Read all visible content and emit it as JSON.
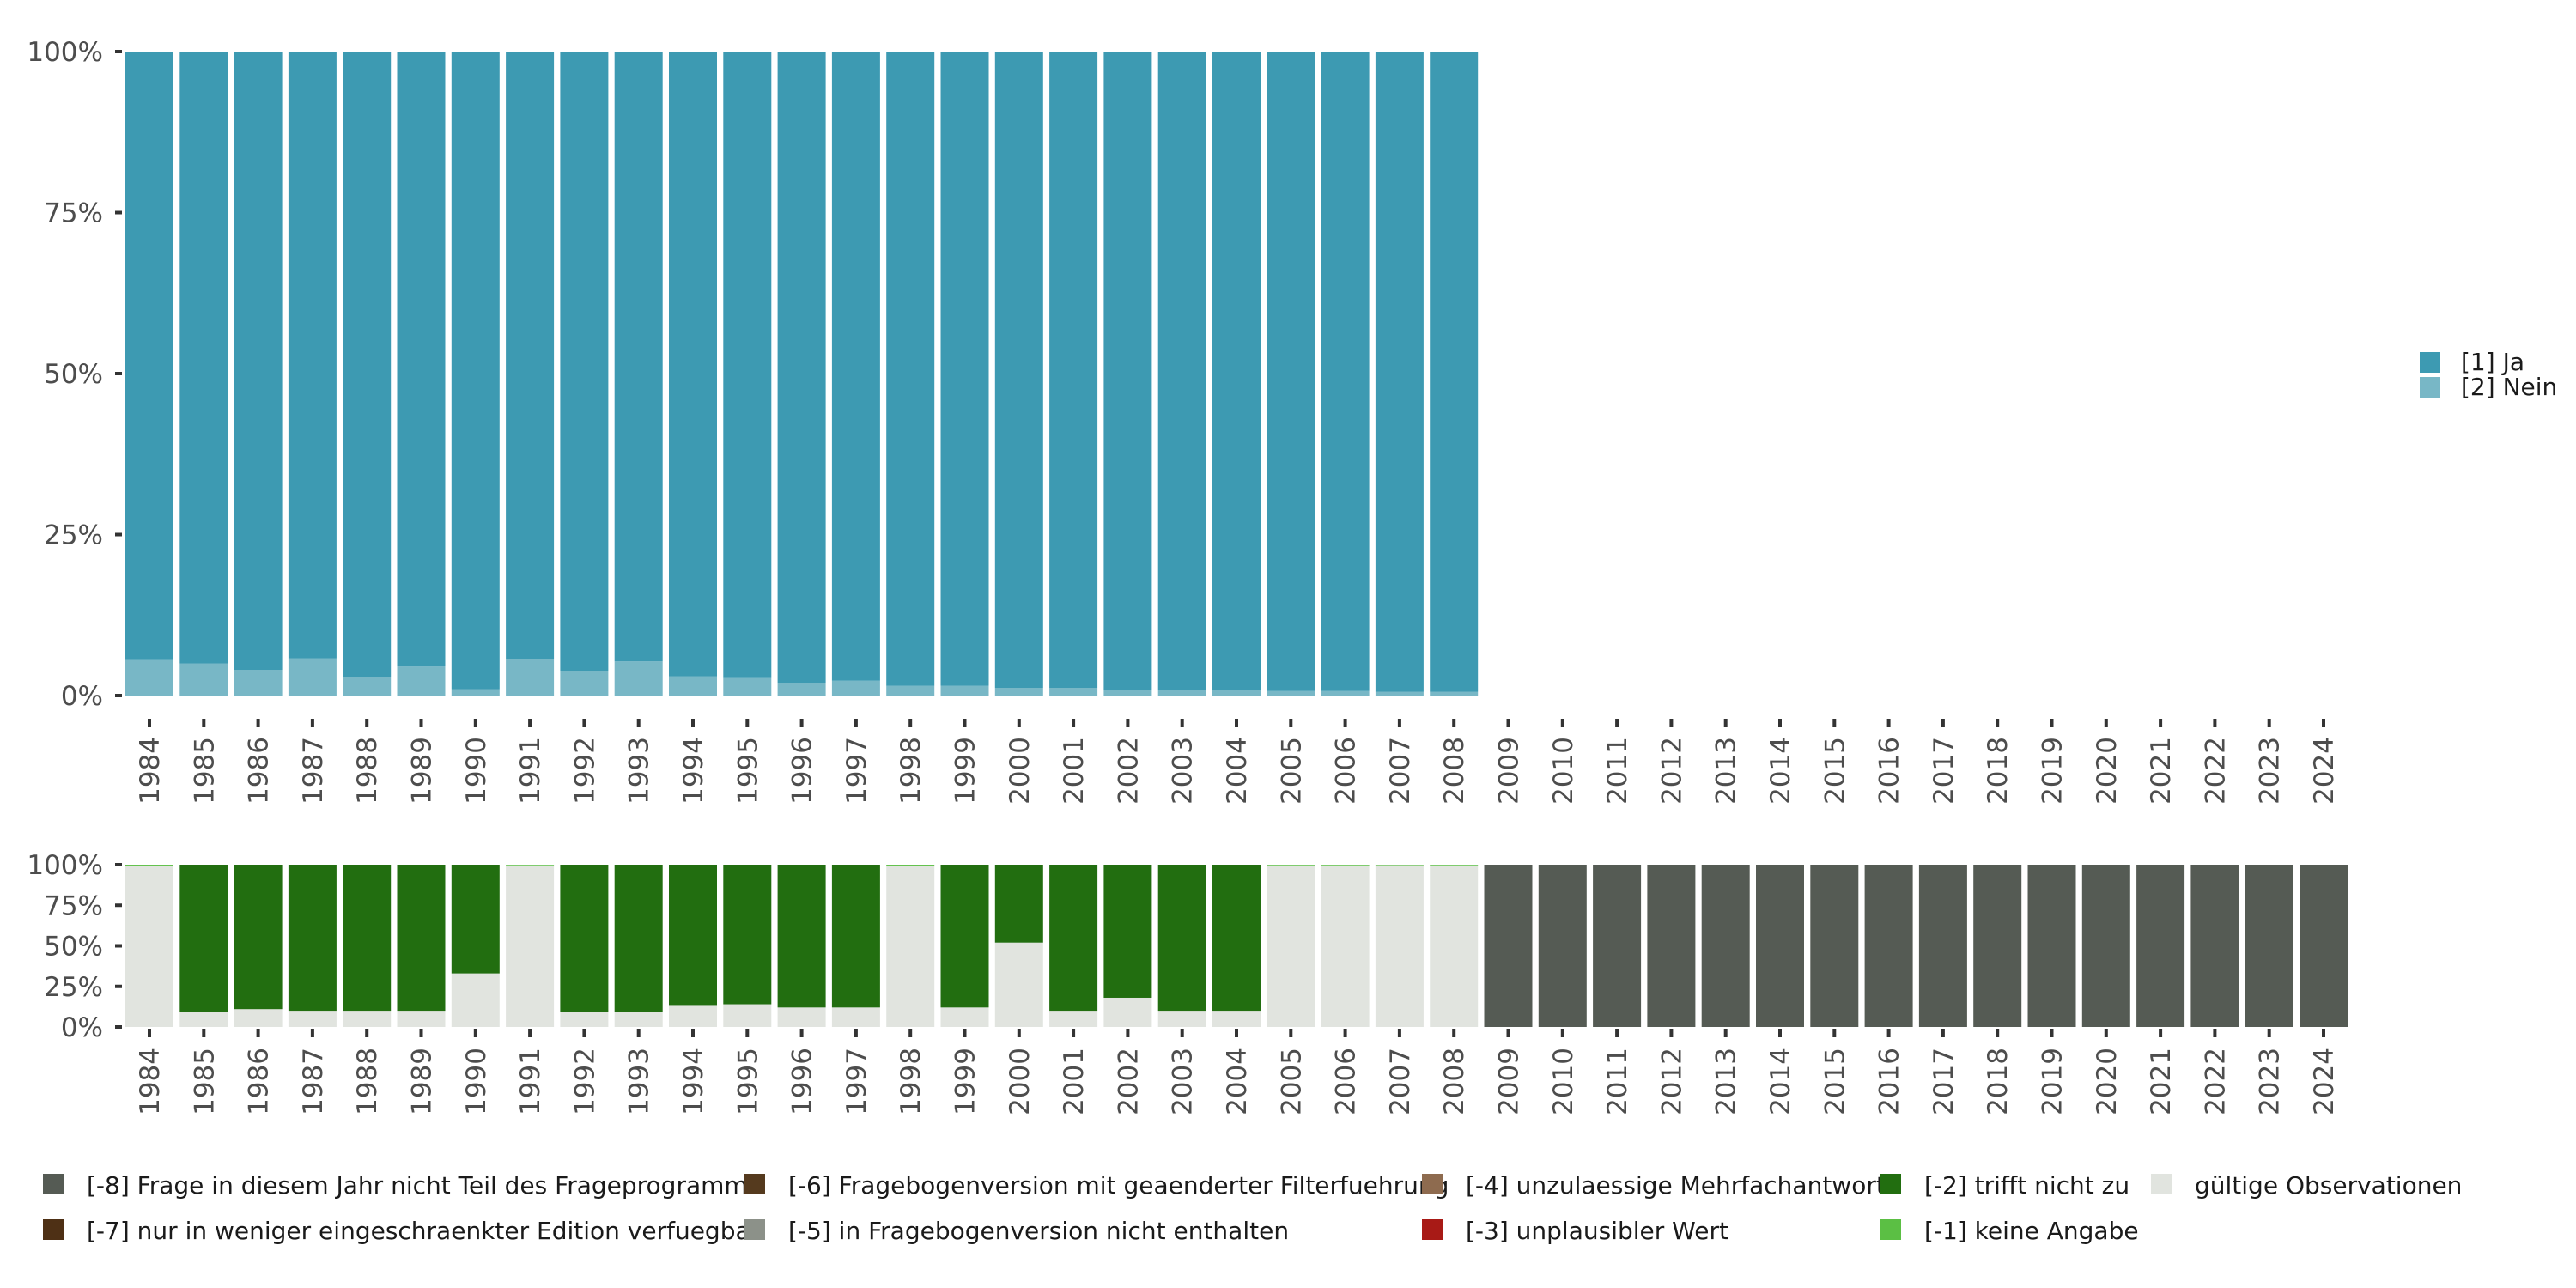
{
  "chart_data": [
    {
      "type": "bar",
      "stacked": true,
      "normalized": true,
      "title": "",
      "xlabel": "",
      "ylabel": "",
      "ylim": [
        0,
        100
      ],
      "yticks": [
        "0%",
        "25%",
        "50%",
        "75%",
        "100%"
      ],
      "categories": [
        "1984",
        "1985",
        "1986",
        "1987",
        "1988",
        "1989",
        "1990",
        "1991",
        "1992",
        "1993",
        "1994",
        "1995",
        "1996",
        "1997",
        "1998",
        "1999",
        "2000",
        "2001",
        "2002",
        "2003",
        "2004",
        "2005",
        "2006",
        "2007",
        "2008",
        "2009",
        "2010",
        "2011",
        "2012",
        "2013",
        "2014",
        "2015",
        "2016",
        "2017",
        "2018",
        "2019",
        "2020",
        "2021",
        "2022",
        "2023",
        "2024"
      ],
      "legend_position": "right",
      "series": [
        {
          "name": "[2] Nein",
          "color": "#78B7C6",
          "values": [
            5.5,
            5.0,
            4.0,
            5.8,
            2.8,
            4.5,
            1.0,
            5.7,
            3.8,
            5.3,
            3.0,
            2.7,
            2.0,
            2.3,
            1.5,
            1.5,
            1.2,
            1.2,
            0.8,
            0.9,
            0.8,
            0.7,
            0.7,
            0.6,
            0.6,
            null,
            null,
            null,
            null,
            null,
            null,
            null,
            null,
            null,
            null,
            null,
            null,
            null,
            null,
            null,
            null
          ]
        },
        {
          "name": "[1] Ja",
          "color": "#3D9AB2",
          "values": [
            94.5,
            95.0,
            96.0,
            94.2,
            97.2,
            95.5,
            99.0,
            94.3,
            96.2,
            94.7,
            97.0,
            97.3,
            98.0,
            97.7,
            98.5,
            98.5,
            98.8,
            98.8,
            99.2,
            99.1,
            99.2,
            99.3,
            99.3,
            99.4,
            99.4,
            null,
            null,
            null,
            null,
            null,
            null,
            null,
            null,
            null,
            null,
            null,
            null,
            null,
            null,
            null,
            null
          ]
        }
      ]
    },
    {
      "type": "bar",
      "stacked": true,
      "normalized": true,
      "title": "",
      "xlabel": "",
      "ylabel": "",
      "ylim": [
        0,
        100
      ],
      "yticks": [
        "0%",
        "25%",
        "50%",
        "75%",
        "100%"
      ],
      "categories": [
        "1984",
        "1985",
        "1986",
        "1987",
        "1988",
        "1989",
        "1990",
        "1991",
        "1992",
        "1993",
        "1994",
        "1995",
        "1996",
        "1997",
        "1998",
        "1999",
        "2000",
        "2001",
        "2002",
        "2003",
        "2004",
        "2005",
        "2006",
        "2007",
        "2008",
        "2009",
        "2010",
        "2011",
        "2012",
        "2013",
        "2014",
        "2015",
        "2016",
        "2017",
        "2018",
        "2019",
        "2020",
        "2021",
        "2022",
        "2023",
        "2024"
      ],
      "legend_position": "bottom",
      "series": [
        {
          "name": "gültige Observationen",
          "color": "#E1E4DF",
          "values": [
            99.5,
            9,
            11,
            10,
            10,
            10,
            33,
            99.6,
            9,
            9,
            13,
            14,
            12,
            12,
            99.5,
            12,
            52,
            10,
            18,
            10,
            10,
            99.6,
            99.6,
            99.8,
            99.6,
            0,
            0,
            0,
            0,
            0,
            0,
            0,
            0,
            0,
            0,
            0,
            0,
            0,
            0,
            0,
            0
          ]
        },
        {
          "name": "[-2] trifft nicht zu",
          "color": "#226E10",
          "values": [
            0,
            91,
            89,
            90,
            90,
            90,
            67,
            0,
            91,
            91,
            87,
            86,
            88,
            88,
            0,
            88,
            48,
            90,
            82,
            90,
            90,
            0,
            0,
            0,
            0,
            0,
            0,
            0,
            0,
            0,
            0,
            0,
            0,
            0,
            0,
            0,
            0,
            0,
            0,
            0,
            0
          ]
        },
        {
          "name": "[-1] keine Angabe",
          "color": "#5BBF44",
          "values": [
            0.5,
            0,
            0,
            0,
            0,
            0,
            0,
            0.4,
            0,
            0,
            0,
            0,
            0,
            0,
            0.5,
            0,
            0,
            0,
            0,
            0,
            0,
            0.4,
            0.4,
            0.2,
            0.4,
            0,
            0,
            0,
            0,
            0,
            0,
            0,
            0,
            0,
            0,
            0,
            0,
            0,
            0,
            0,
            0
          ]
        },
        {
          "name": "[-8] Frage in diesem Jahr nicht Teil des Frageprogramms",
          "color": "#555B54",
          "values": [
            0,
            0,
            0,
            0,
            0,
            0,
            0,
            0,
            0,
            0,
            0,
            0,
            0,
            0,
            0,
            0,
            0,
            0,
            0,
            0,
            0,
            0,
            0,
            0,
            0,
            100,
            100,
            100,
            100,
            100,
            100,
            100,
            100,
            100,
            100,
            100,
            100,
            100,
            100,
            100,
            100
          ]
        }
      ],
      "legend": [
        {
          "name": "[-8] Frage in diesem Jahr nicht Teil des Frageprogramms",
          "color": "#555B54"
        },
        {
          "name": "[-7] nur in weniger eingeschraenkter Edition verfuegbar",
          "color": "#4E3015"
        },
        {
          "name": "[-6] Fragebogenversion mit geaenderter Filterfuehrung",
          "color": "#553A1E"
        },
        {
          "name": "[-5] in Fragebogenversion nicht enthalten",
          "color": "#8C9189"
        },
        {
          "name": "[-4] unzulaessige Mehrfachantwort",
          "color": "#8E6B4F"
        },
        {
          "name": "[-3] unplausibler Wert",
          "color": "#A81A16"
        },
        {
          "name": "[-2] trifft nicht zu",
          "color": "#226E10"
        },
        {
          "name": "[-1] keine Angabe",
          "color": "#5BBF44"
        },
        {
          "name": "gültige Observationen",
          "color": "#E1E4DF"
        }
      ]
    }
  ]
}
